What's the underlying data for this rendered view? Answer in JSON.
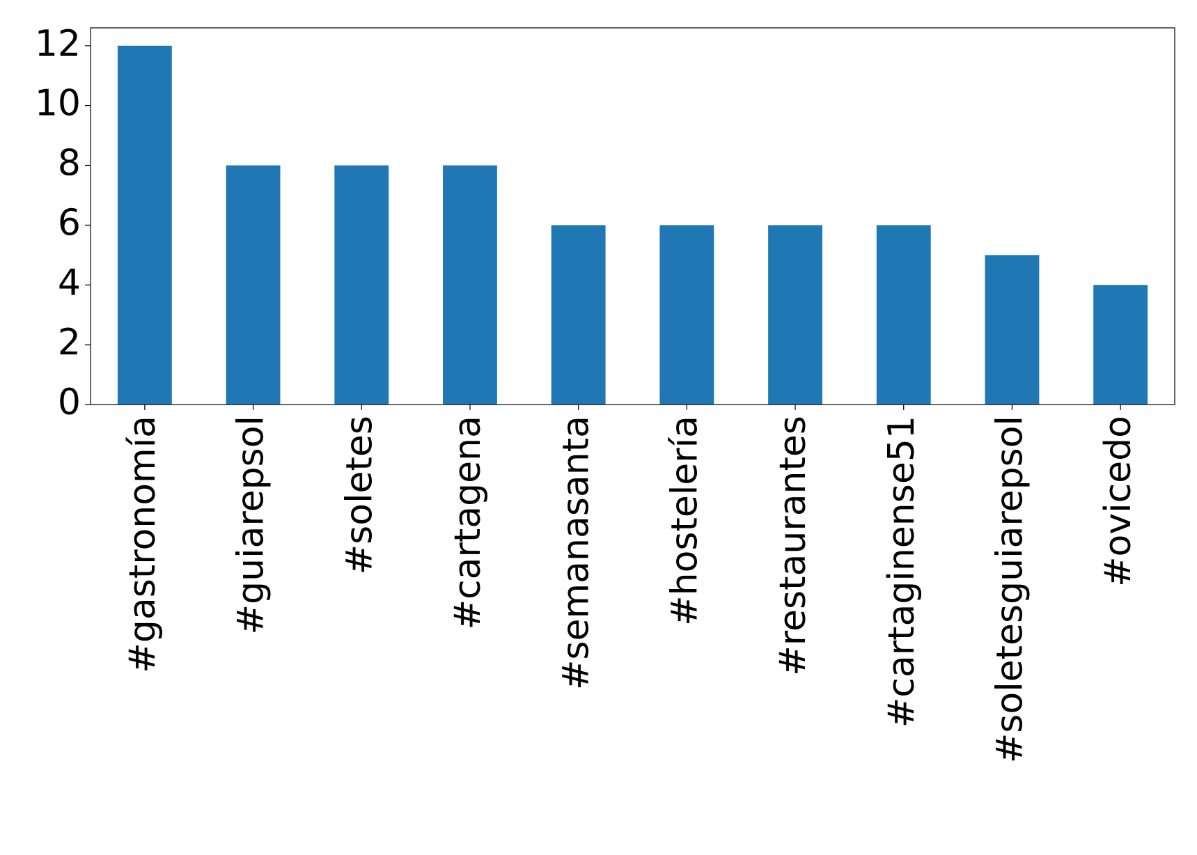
{
  "chart_data": {
    "type": "bar",
    "categories": [
      "#gastronomía",
      "#guiarepsol",
      "#soletes",
      "#cartagena",
      "#semanasanta",
      "#hostelería",
      "#restaurantes",
      "#cartaginense51",
      "#soletesguiarepsol",
      "#ovicedo"
    ],
    "values": [
      12,
      8,
      8,
      8,
      6,
      6,
      6,
      6,
      5,
      4
    ],
    "color": "#1f77b4",
    "ylim": [
      0,
      12.6
    ],
    "yticks": [
      0,
      2,
      4,
      6,
      8,
      10,
      12
    ],
    "grid": false
  }
}
